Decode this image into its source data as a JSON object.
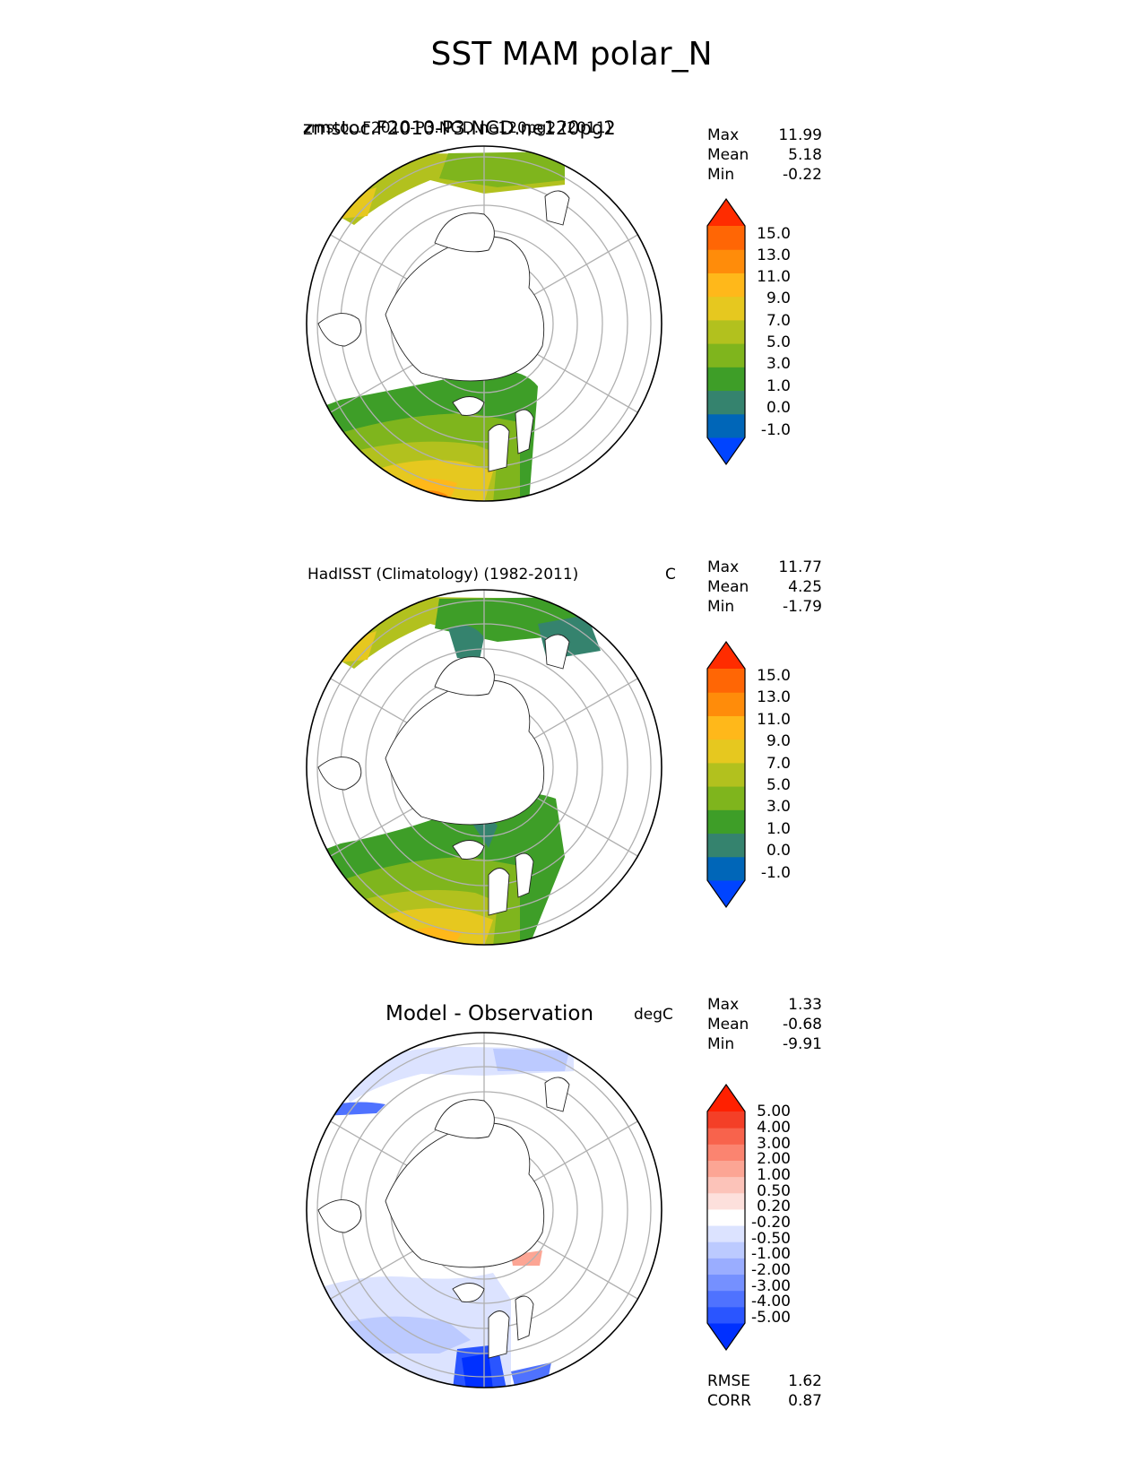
{
  "title": "SST MAM polar_N",
  "panels": [
    {
      "label": "zmstoc.F2010-P3.NGD.ne120pg2 (2011)",
      "label_overlap": "zmstoc.F2010-P3.NGD.ne120pg2",
      "units": "",
      "stats": [
        {
          "name": "Max",
          "value": "11.99"
        },
        {
          "name": "Mean",
          "value": "5.18"
        },
        {
          "name": "Min",
          "value": "-0.22"
        }
      ],
      "colorbar": {
        "colors": [
          "#0044ff",
          "#0066b8",
          "#35836e",
          "#3e9e28",
          "#7fb51d",
          "#b2c11e",
          "#e6c81f",
          "#ffb81a",
          "#ff8c0a",
          "#ff6605",
          "#ff2c00"
        ],
        "labels": [
          "15.0",
          "13.0",
          "11.0",
          "9.0",
          "7.0",
          "5.0",
          "3.0",
          "1.0",
          "0.0",
          "-1.0"
        ]
      }
    },
    {
      "label": "HadISST (Climatology) (1982-2011)",
      "units": "C",
      "stats": [
        {
          "name": "Max",
          "value": "11.77"
        },
        {
          "name": "Mean",
          "value": "4.25"
        },
        {
          "name": "Min",
          "value": "-1.79"
        }
      ],
      "colorbar": {
        "colors": [
          "#0044ff",
          "#0066b8",
          "#35836e",
          "#3e9e28",
          "#7fb51d",
          "#b2c11e",
          "#e6c81f",
          "#ffb81a",
          "#ff8c0a",
          "#ff6605",
          "#ff2c00"
        ],
        "labels": [
          "15.0",
          "13.0",
          "11.0",
          "9.0",
          "7.0",
          "5.0",
          "3.0",
          "1.0",
          "0.0",
          "-1.0"
        ]
      }
    },
    {
      "label": "Model - Observation",
      "units": "degC",
      "stats": [
        {
          "name": "Max",
          "value": "1.33"
        },
        {
          "name": "Mean",
          "value": "-0.68"
        },
        {
          "name": "Min",
          "value": "-9.91"
        }
      ],
      "colorbar": {
        "colors": [
          "#0030ff",
          "#2a55ff",
          "#4f72ff",
          "#7590ff",
          "#9aadff",
          "#bccaff",
          "#dce3ff",
          "#ffffff",
          "#fde0dc",
          "#fcc3b9",
          "#fca594",
          "#fb8470",
          "#f8634c",
          "#f43f27",
          "#ff2000"
        ],
        "labels": [
          "5.00",
          "4.00",
          "3.00",
          "2.00",
          "1.00",
          "0.50",
          "0.20",
          "-0.20",
          "-0.50",
          "-1.00",
          "-2.00",
          "-3.00",
          "-4.00",
          "-5.00"
        ]
      },
      "metrics": [
        {
          "name": "RMSE",
          "value": "1.62"
        },
        {
          "name": "CORR",
          "value": "0.87"
        }
      ]
    }
  ]
}
